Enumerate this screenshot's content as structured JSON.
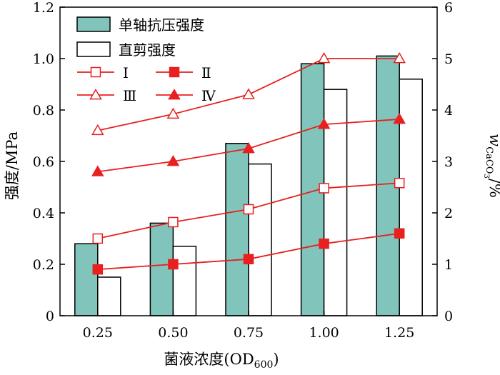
{
  "chart_data": {
    "type": "bar",
    "categories": [
      "0.25",
      "0.50",
      "0.75",
      "1.00",
      "1.25"
    ],
    "xlabel": "菌液浓度(OD",
    "xlabel_sub": "600",
    "xlabel_suffix": ")",
    "ylabel_left": "强度/MPa",
    "ylabel_right_main": "w",
    "ylabel_right_sub": "CaCO",
    "ylabel_right_sub2": "3",
    "ylabel_right_suffix": "/%",
    "ylim_left": [
      0,
      1.2
    ],
    "yticks_left": [
      "0",
      "0.2",
      "0.4",
      "0.6",
      "0.8",
      "1.0",
      "1.2"
    ],
    "ylim_right": [
      0,
      6
    ],
    "yticks_right": [
      "0",
      "1",
      "2",
      "3",
      "4",
      "5",
      "6"
    ],
    "bar_series": [
      {
        "name": "单轴抗压强度",
        "values": [
          0.28,
          0.36,
          0.67,
          0.98,
          1.01
        ],
        "color": "#80c4bb",
        "axis": "left"
      },
      {
        "name": "直剪强度",
        "values": [
          0.15,
          0.27,
          0.59,
          0.88,
          0.92
        ],
        "color": "#ffffff",
        "axis": "left"
      }
    ],
    "line_series": [
      {
        "name": "Ⅰ",
        "values": [
          1.5,
          1.82,
          2.07,
          2.48,
          2.58
        ],
        "marker": "square-open",
        "axis": "right"
      },
      {
        "name": "Ⅱ",
        "values": [
          0.9,
          1.0,
          1.1,
          1.4,
          1.6
        ],
        "marker": "square-filled",
        "axis": "right"
      },
      {
        "name": "Ⅲ",
        "values": [
          3.6,
          3.92,
          4.3,
          5.0,
          5.0
        ],
        "marker": "triangle-open",
        "axis": "right"
      },
      {
        "name": "Ⅳ",
        "values": [
          2.8,
          3.0,
          3.25,
          3.72,
          3.82
        ],
        "marker": "triangle-filled",
        "axis": "right"
      }
    ],
    "line_color": "#e8201f",
    "bar_edge_color": "#000000",
    "legend_position": "top-left",
    "grid": false
  }
}
